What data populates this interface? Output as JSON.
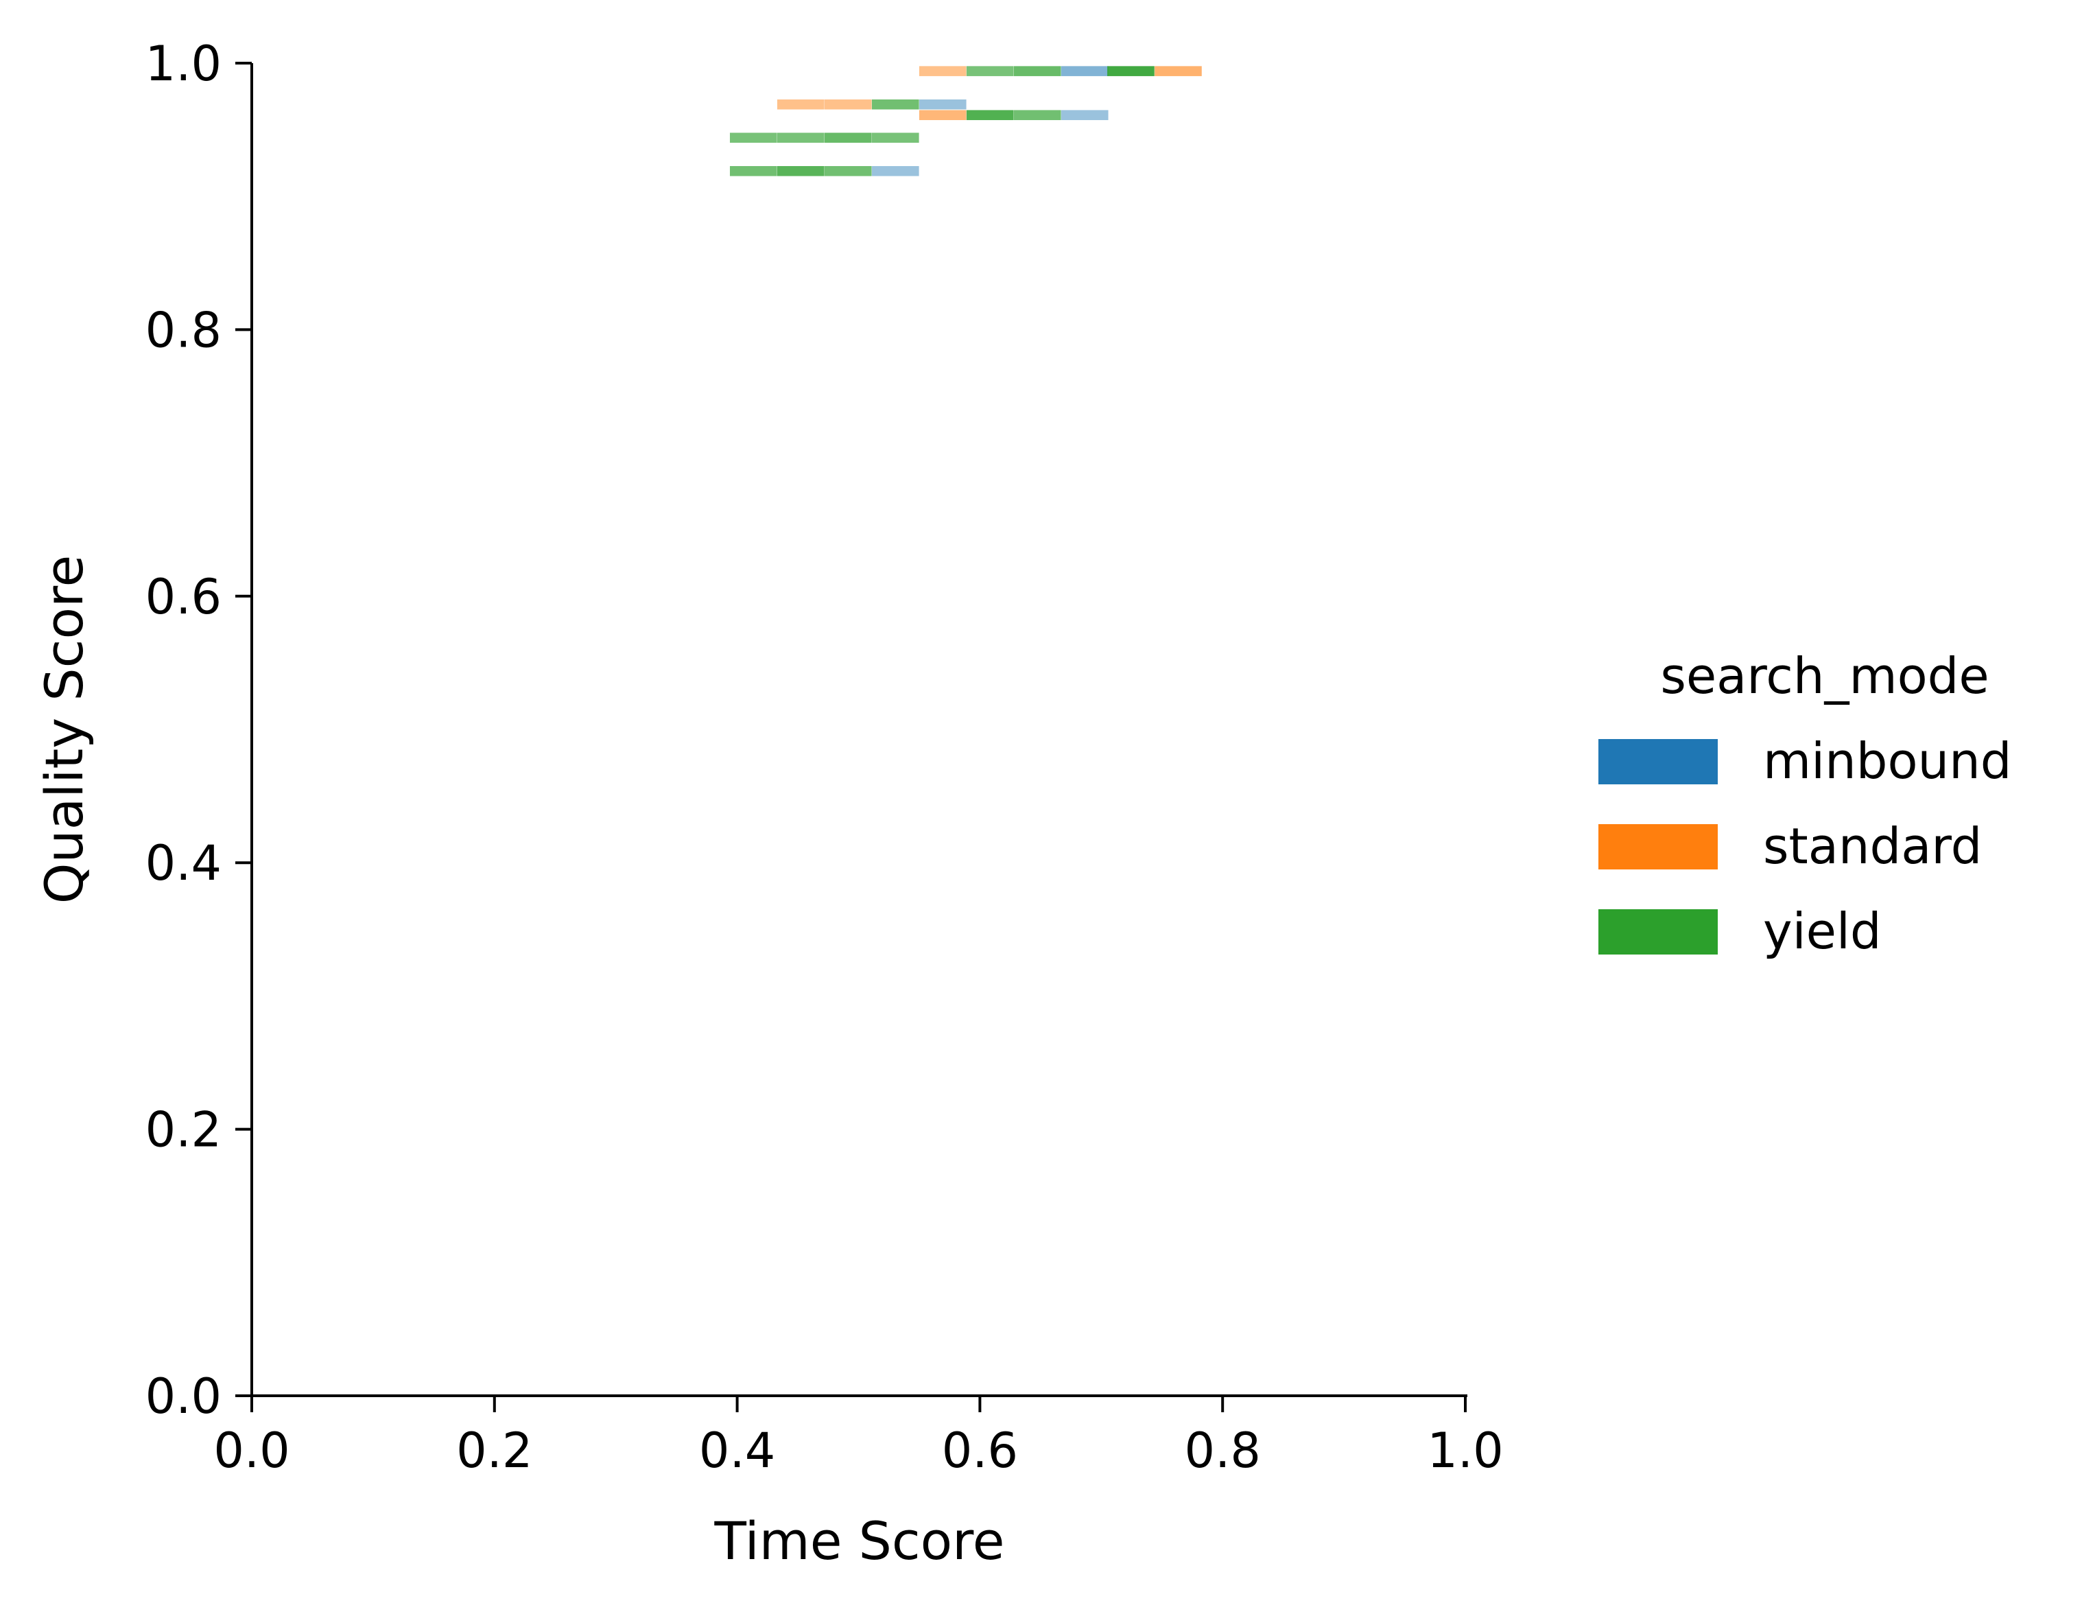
{
  "chart_data": {
    "type": "heatmap",
    "title": "",
    "xlabel": "Time Score",
    "ylabel": "Quality Score",
    "xlim": [
      0.0,
      1.0
    ],
    "ylim": [
      0.0,
      1.0
    ],
    "xticks": [
      "0.0",
      "0.2",
      "0.4",
      "0.6",
      "0.8",
      "1.0"
    ],
    "yticks": [
      "0.0",
      "0.2",
      "0.4",
      "0.6",
      "0.8",
      "1.0"
    ],
    "grid": false,
    "legend": {
      "title": "search_mode",
      "position": "right",
      "entries": [
        {
          "label": "minbound",
          "color": "#1f77b4"
        },
        {
          "label": "standard",
          "color": "#ff7f0e"
        },
        {
          "label": "yield",
          "color": "#2ca02c"
        }
      ]
    },
    "bin_width": 0.0388,
    "bin_height": 0.0075,
    "cells": [
      {
        "series": "standard",
        "x0": 0.55,
        "y": 0.994,
        "density": 0.45
      },
      {
        "series": "yield",
        "x0": 0.589,
        "y": 0.994,
        "density": 0.65
      },
      {
        "series": "yield",
        "x0": 0.628,
        "y": 0.994,
        "density": 0.75
      },
      {
        "series": "minbound",
        "x0": 0.667,
        "y": 0.994,
        "density": 0.55
      },
      {
        "series": "yield",
        "x0": 0.705,
        "y": 0.994,
        "density": 1.0
      },
      {
        "series": "standard",
        "x0": 0.744,
        "y": 0.994,
        "density": 0.6
      },
      {
        "series": "standard",
        "x0": 0.433,
        "y": 0.969,
        "density": 0.45
      },
      {
        "series": "standard",
        "x0": 0.472,
        "y": 0.969,
        "density": 0.45
      },
      {
        "series": "yield",
        "x0": 0.511,
        "y": 0.969,
        "density": 0.7
      },
      {
        "series": "minbound",
        "x0": 0.55,
        "y": 0.969,
        "density": 0.4
      },
      {
        "series": "standard",
        "x0": 0.55,
        "y": 0.961,
        "density": 0.55
      },
      {
        "series": "yield",
        "x0": 0.589,
        "y": 0.961,
        "density": 0.9
      },
      {
        "series": "yield",
        "x0": 0.628,
        "y": 0.961,
        "density": 0.7
      },
      {
        "series": "minbound",
        "x0": 0.667,
        "y": 0.961,
        "density": 0.4
      },
      {
        "series": "yield",
        "x0": 0.394,
        "y": 0.944,
        "density": 0.65
      },
      {
        "series": "yield",
        "x0": 0.433,
        "y": 0.944,
        "density": 0.65
      },
      {
        "series": "yield",
        "x0": 0.472,
        "y": 0.944,
        "density": 0.75
      },
      {
        "series": "yield",
        "x0": 0.511,
        "y": 0.944,
        "density": 0.65
      },
      {
        "series": "yield",
        "x0": 0.394,
        "y": 0.919,
        "density": 0.7
      },
      {
        "series": "yield",
        "x0": 0.433,
        "y": 0.919,
        "density": 0.85
      },
      {
        "series": "yield",
        "x0": 0.472,
        "y": 0.919,
        "density": 0.7
      },
      {
        "series": "minbound",
        "x0": 0.511,
        "y": 0.919,
        "density": 0.4
      }
    ]
  }
}
